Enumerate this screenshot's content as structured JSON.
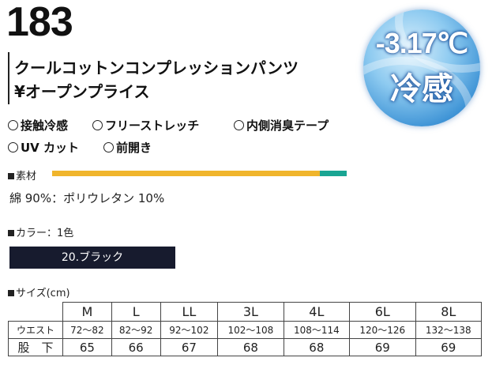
{
  "product": {
    "number": "183",
    "name": "クールコットンコンプレッションパンツ",
    "price": "¥オープンプライス"
  },
  "badge": {
    "temperature": "-3.17℃",
    "label": "冷感"
  },
  "features": [
    "接触冷感",
    "フリーストレッチ",
    "内側消臭テープ",
    "UV カット",
    "前開き"
  ],
  "material": {
    "heading": "素材",
    "composition": "綿 90%：ポリウレタン 10%",
    "bar_colors": [
      "#f0b52c",
      "#19a593"
    ]
  },
  "color": {
    "heading": "カラー：1色",
    "options": [
      {
        "label": "20.ブラック",
        "swatch": "#171b2e"
      }
    ]
  },
  "sizes": {
    "heading": "サイズ(cm)",
    "columns": [
      "M",
      "L",
      "LL",
      "3L",
      "4L",
      "6L",
      "8L"
    ],
    "rows": [
      {
        "label": "ウエスト",
        "values": [
          "72〜82",
          "82〜92",
          "92〜102",
          "102〜108",
          "108〜114",
          "120〜126",
          "132〜138"
        ]
      },
      {
        "label": "股　下",
        "values": [
          "65",
          "66",
          "67",
          "68",
          "68",
          "69",
          "69"
        ]
      }
    ]
  }
}
